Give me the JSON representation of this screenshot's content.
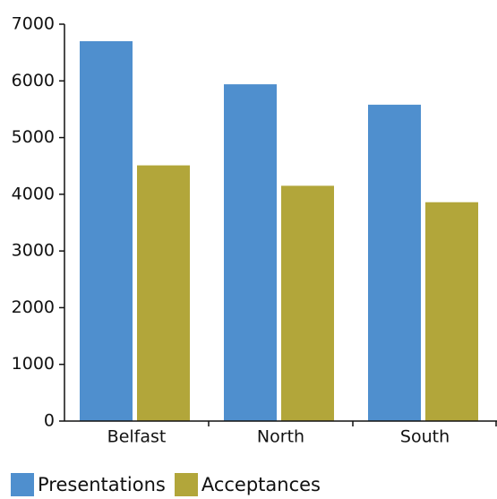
{
  "chart_data": {
    "type": "bar",
    "categories": [
      "Belfast",
      "North",
      "South"
    ],
    "series": [
      {
        "name": "Presentations",
        "color": "#4f8fce",
        "values": [
          6700,
          5940,
          5580
        ]
      },
      {
        "name": "Acceptances",
        "color": "#b2a63a",
        "values": [
          4510,
          4150,
          3860
        ]
      }
    ],
    "ylim": [
      0,
      7000
    ],
    "yticks": [
      0,
      1000,
      2000,
      3000,
      4000,
      5000,
      6000,
      7000
    ],
    "grid": false,
    "legend_position": "bottom-left"
  }
}
